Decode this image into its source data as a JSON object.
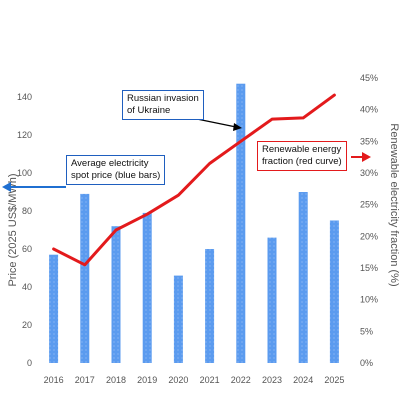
{
  "chart_data": {
    "type": "bar",
    "categories": [
      "2016",
      "2017",
      "2018",
      "2019",
      "2020",
      "2021",
      "2022",
      "2023",
      "2024",
      "2025"
    ],
    "series": [
      {
        "type": "bar",
        "axis": "left",
        "color": "#5b9bef",
        "values": [
          57,
          89,
          72,
          79,
          46,
          60,
          147,
          66,
          90,
          75
        ]
      },
      {
        "type": "line",
        "axis": "right",
        "color": "#e31a1c",
        "values": [
          18,
          15.5,
          21,
          23.5,
          26.5,
          31.5,
          35,
          38.5,
          38.7,
          42.3
        ]
      }
    ],
    "ylabel": "Price (2025 US$/MWh)",
    "ylim": [
      0,
      150
    ],
    "yticks": [
      "0",
      "20",
      "40",
      "60",
      "80",
      "100",
      "120",
      "140"
    ],
    "y2label": "Renewable electricity fraction (%)",
    "y2lim": [
      0,
      45
    ],
    "y2ticks": [
      "0%",
      "5%",
      "10%",
      "15%",
      "20%",
      "25%",
      "30%",
      "35%",
      "40%",
      "45%"
    ],
    "annotations": {
      "invasion": {
        "lines": [
          "Russian invasion",
          "of Ukraine"
        ],
        "color": "#1f5fbf"
      },
      "price": {
        "lines": [
          "Average electricity",
          "spot price (blue bars)"
        ],
        "color": "#1f5fbf"
      },
      "renewable": {
        "lines": [
          "Renewable energy",
          "fraction (red curve)"
        ],
        "color": "#e31a1c"
      }
    },
    "grid": false,
    "legend": "none"
  }
}
